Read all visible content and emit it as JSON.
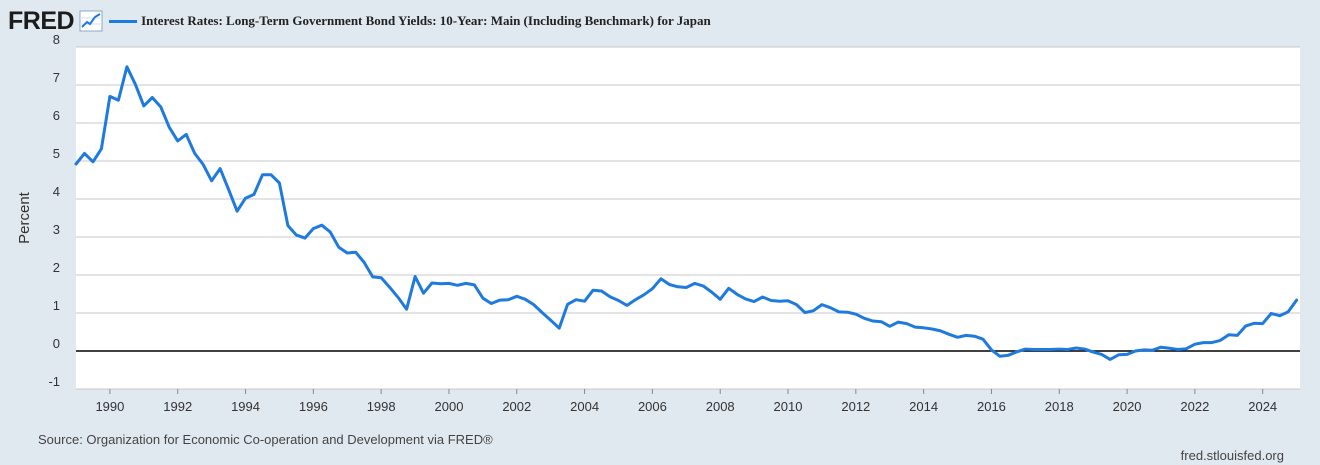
{
  "header": {
    "logo_text": "FRED",
    "logo_icon": "line-chart-icon"
  },
  "chart_data": {
    "type": "line",
    "title": "",
    "legend": "top-left",
    "xlabel": "",
    "ylabel": "Percent",
    "ylim": [
      -1,
      8
    ],
    "xlim": [
      1989.0,
      2025.1
    ],
    "grid": true,
    "zero_line": true,
    "yticks": [
      "-1",
      "0",
      "1",
      "2",
      "3",
      "4",
      "5",
      "6",
      "7",
      "8"
    ],
    "xticks": [
      "1990",
      "1992",
      "1994",
      "1996",
      "1998",
      "2000",
      "2002",
      "2004",
      "2006",
      "2008",
      "2010",
      "2012",
      "2014",
      "2016",
      "2018",
      "2020",
      "2022",
      "2024"
    ],
    "series": [
      {
        "name": "Interest Rates: Long-Term Government Bond Yields: 10-Year: Main (Including Benchmark) for Japan",
        "color": "#1f7ae0",
        "x": [
          1989.0,
          1989.25,
          1989.5,
          1989.75,
          1990.0,
          1990.25,
          1990.5,
          1990.75,
          1991.0,
          1991.25,
          1991.5,
          1991.75,
          1992.0,
          1992.25,
          1992.5,
          1992.75,
          1993.0,
          1993.25,
          1993.5,
          1993.75,
          1994.0,
          1994.25,
          1994.5,
          1994.75,
          1995.0,
          1995.25,
          1995.5,
          1995.75,
          1996.0,
          1996.25,
          1996.5,
          1996.75,
          1997.0,
          1997.25,
          1997.5,
          1997.75,
          1998.0,
          1998.25,
          1998.5,
          1998.75,
          1999.0,
          1999.25,
          1999.5,
          1999.75,
          2000.0,
          2000.25,
          2000.5,
          2000.75,
          2001.0,
          2001.25,
          2001.5,
          2001.75,
          2002.0,
          2002.25,
          2002.5,
          2002.75,
          2003.0,
          2003.25,
          2003.5,
          2003.75,
          2004.0,
          2004.25,
          2004.5,
          2004.75,
          2005.0,
          2005.25,
          2005.5,
          2005.75,
          2006.0,
          2006.25,
          2006.5,
          2006.75,
          2007.0,
          2007.25,
          2007.5,
          2007.75,
          2008.0,
          2008.25,
          2008.5,
          2008.75,
          2009.0,
          2009.25,
          2009.5,
          2009.75,
          2010.0,
          2010.25,
          2010.5,
          2010.75,
          2011.0,
          2011.25,
          2011.5,
          2011.75,
          2012.0,
          2012.25,
          2012.5,
          2012.75,
          2013.0,
          2013.25,
          2013.5,
          2013.75,
          2014.0,
          2014.25,
          2014.5,
          2014.75,
          2015.0,
          2015.25,
          2015.5,
          2015.75,
          2016.0,
          2016.25,
          2016.5,
          2016.75,
          2017.0,
          2017.25,
          2017.5,
          2017.75,
          2018.0,
          2018.25,
          2018.5,
          2018.75,
          2019.0,
          2019.25,
          2019.5,
          2019.75,
          2020.0,
          2020.25,
          2020.5,
          2020.75,
          2021.0,
          2021.25,
          2021.5,
          2021.75,
          2022.0,
          2022.25,
          2022.5,
          2022.75,
          2023.0,
          2023.25,
          2023.5,
          2023.75,
          2024.0,
          2024.25,
          2024.5,
          2024.75,
          2025.0
        ],
        "y": [
          4.92,
          5.2,
          4.98,
          5.32,
          6.7,
          6.6,
          7.48,
          7.02,
          6.45,
          6.67,
          6.42,
          5.89,
          5.53,
          5.7,
          5.2,
          4.91,
          4.48,
          4.8,
          4.25,
          3.68,
          4.02,
          4.12,
          4.64,
          4.64,
          4.42,
          3.3,
          3.05,
          2.97,
          3.22,
          3.31,
          3.13,
          2.73,
          2.58,
          2.6,
          2.33,
          1.95,
          1.93,
          1.68,
          1.41,
          1.1,
          1.96,
          1.52,
          1.79,
          1.77,
          1.78,
          1.73,
          1.78,
          1.74,
          1.39,
          1.25,
          1.34,
          1.35,
          1.44,
          1.36,
          1.22,
          1.01,
          0.81,
          0.6,
          1.23,
          1.35,
          1.31,
          1.6,
          1.58,
          1.43,
          1.33,
          1.2,
          1.35,
          1.48,
          1.64,
          1.9,
          1.75,
          1.69,
          1.67,
          1.78,
          1.71,
          1.55,
          1.36,
          1.65,
          1.49,
          1.37,
          1.3,
          1.42,
          1.33,
          1.31,
          1.32,
          1.22,
          1.01,
          1.06,
          1.22,
          1.14,
          1.03,
          1.02,
          0.97,
          0.86,
          0.79,
          0.77,
          0.65,
          0.76,
          0.72,
          0.63,
          0.61,
          0.58,
          0.53,
          0.44,
          0.36,
          0.41,
          0.39,
          0.31,
          0.03,
          -0.14,
          -0.11,
          -0.02,
          0.05,
          0.04,
          0.04,
          0.04,
          0.05,
          0.04,
          0.08,
          0.05,
          -0.03,
          -0.09,
          -0.22,
          -0.1,
          -0.09,
          0.0,
          0.03,
          0.02,
          0.1,
          0.07,
          0.04,
          0.06,
          0.18,
          0.22,
          0.22,
          0.28,
          0.43,
          0.41,
          0.66,
          0.73,
          0.72,
          0.99,
          0.93,
          1.03,
          1.34
        ]
      }
    ]
  },
  "footer": {
    "source": "Source: Organization for Economic Co-operation and Development via FRED®",
    "site": "fred.stlouisfed.org"
  }
}
